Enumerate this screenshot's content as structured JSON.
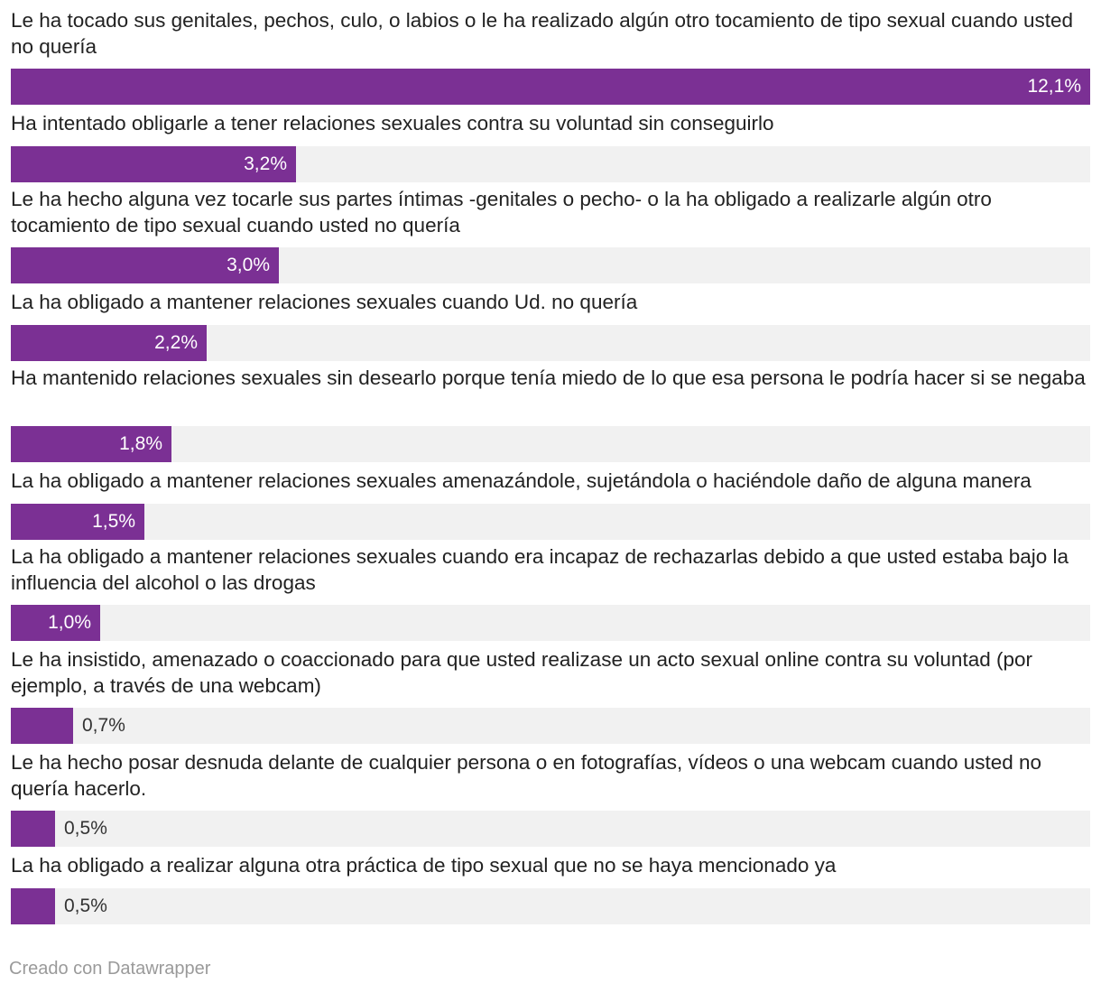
{
  "chart_data": {
    "type": "bar",
    "orientation": "horizontal",
    "max_value": 12.1,
    "bar_color": "#7b3094",
    "track_color": "#f1f1f1",
    "categories": [
      "Le ha tocado sus genitales, pechos, culo, o labios o le ha realizado algún otro tocamiento de tipo sexual cuando usted no quería",
      "Ha intentado obligarle a tener relaciones sexuales contra su voluntad sin conseguirlo",
      "Le ha hecho alguna vez tocarle sus partes íntimas -genitales o pecho- o la ha obligado a realizarle algún otro tocamiento de tipo sexual cuando usted no quería",
      "La ha obligado a mantener relaciones sexuales cuando Ud. no quería",
      "Ha mantenido relaciones sexuales sin desearlo porque tenía miedo de lo que esa persona le podría hacer si se negaba",
      "La ha obligado a mantener relaciones sexuales amenazándole, sujetándola o haciéndole daño de alguna manera",
      "La ha obligado a mantener relaciones sexuales cuando era incapaz de rechazarlas debido a que usted estaba bajo la influencia del alcohol o las drogas",
      "Le ha insistido, amenazado o coaccionado para que usted realizase un acto sexual online contra su voluntad (por ejemplo, a través de una webcam)",
      "Le ha hecho posar desnuda delante de cualquier persona o en fotografías, vídeos o una webcam cuando usted no quería hacerlo.",
      "La ha obligado a realizar alguna otra práctica de tipo sexual que no se haya mencionado ya"
    ],
    "values": [
      12.1,
      3.2,
      3.0,
      2.2,
      1.8,
      1.5,
      1.0,
      0.7,
      0.5,
      0.5
    ],
    "value_labels": [
      "12,1%",
      "3,2%",
      "3,0%",
      "2,2%",
      "1,8%",
      "1,5%",
      "1,0%",
      "0,7%",
      "0,5%",
      "0,5%"
    ],
    "label_lines": [
      2,
      1,
      2,
      1,
      2,
      1,
      2,
      2,
      2,
      1
    ]
  },
  "footer": "Creado con Datawrapper"
}
